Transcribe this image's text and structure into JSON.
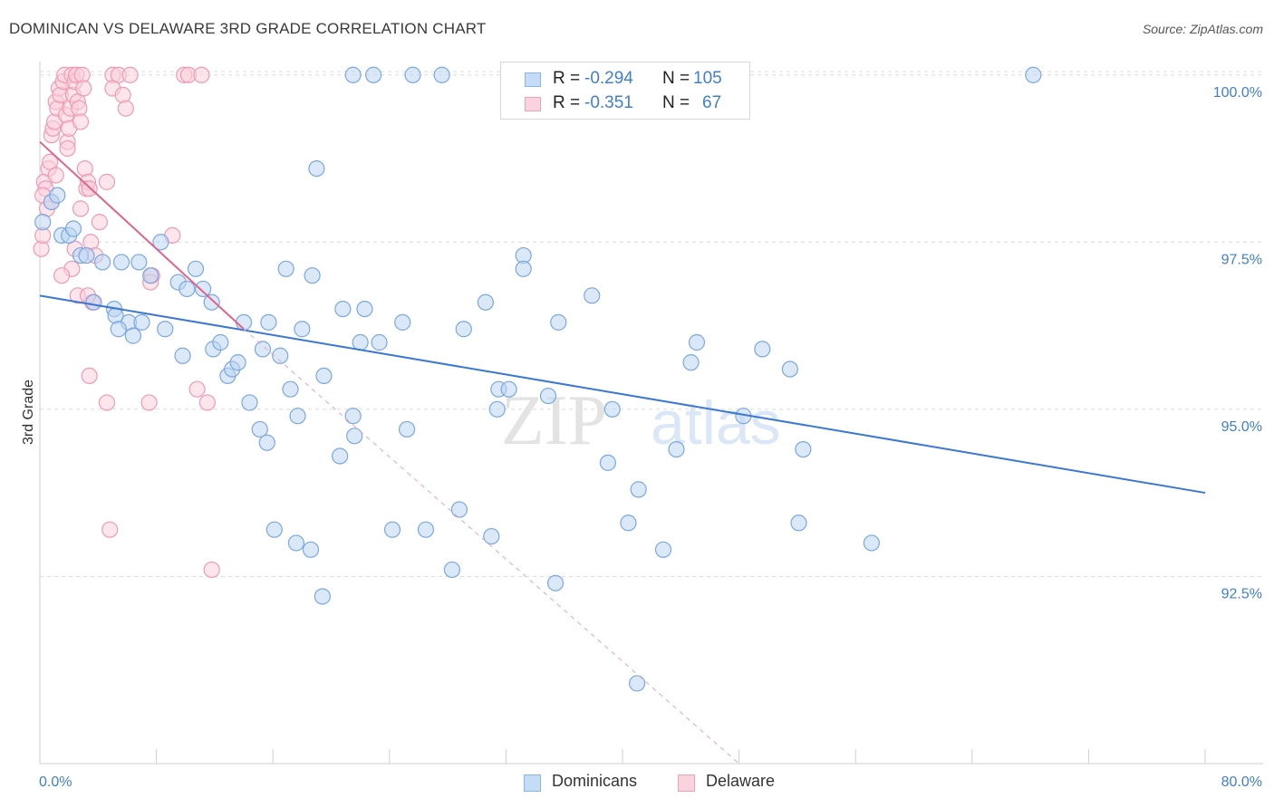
{
  "title": "DOMINICAN VS DELAWARE 3RD GRADE CORRELATION CHART",
  "source": "Source: ZipAtlas.com",
  "watermark": {
    "zip": "ZIP",
    "atlas": "atlas"
  },
  "legend": {
    "rows": [
      {
        "r_label": "R =",
        "r_value": "-0.294",
        "n_label": "N =",
        "n_value": "105",
        "color": "#8ab4e8",
        "fill": "#c5dcf6"
      },
      {
        "r_label": "R =",
        "r_value": "-0.351",
        "n_label": "N =",
        "n_value": "67",
        "color": "#f0a0b8",
        "fill": "#fbd3df"
      }
    ]
  },
  "bottom_legend": {
    "dominicans": "Dominicans",
    "delaware": "Delaware"
  },
  "colors": {
    "blue": "#3a78d4",
    "blue_fill": "#bcd5f3",
    "blue_stroke": "#7aa8e0",
    "pink": "#e0648a",
    "pink_fill": "#fbd0dd",
    "pink_stroke": "#ef9ab5",
    "tick": "#3f7fd0"
  },
  "chart_data": {
    "type": "scatter",
    "title": "DOMINICAN VS DELAWARE 3RD GRADE CORRELATION CHART",
    "xlabel": "",
    "ylabel": "3rd Grade",
    "xlim": [
      0,
      80
    ],
    "ylim": [
      89.7,
      100.2
    ],
    "x_tick_labels": [
      "0.0%",
      "80.0%"
    ],
    "y_ticks": [
      100.0,
      97.5,
      95.0,
      92.5
    ],
    "y_tick_labels": [
      "100.0%",
      "97.5%",
      "95.0%",
      "92.5%"
    ],
    "series": [
      {
        "name": "Dominicans",
        "trend": {
          "x": [
            0,
            80
          ],
          "y": [
            96.7,
            93.75
          ]
        },
        "points": [
          [
            0.2,
            97.8
          ],
          [
            0.8,
            98.1
          ],
          [
            1.2,
            98.2
          ],
          [
            1.5,
            97.6
          ],
          [
            2.0,
            97.6
          ],
          [
            2.8,
            97.3
          ],
          [
            2.3,
            97.7
          ],
          [
            3.2,
            97.3
          ],
          [
            4.3,
            97.2
          ],
          [
            5.6,
            97.2
          ],
          [
            6.8,
            97.2
          ],
          [
            7.6,
            97.0
          ],
          [
            8.3,
            97.5
          ],
          [
            9.5,
            96.9
          ],
          [
            10.7,
            97.1
          ],
          [
            11.2,
            96.8
          ],
          [
            10.1,
            96.8
          ],
          [
            3.7,
            96.6
          ],
          [
            5.1,
            96.5
          ],
          [
            6.1,
            96.3
          ],
          [
            5.2,
            96.4
          ],
          [
            5.4,
            96.2
          ],
          [
            6.4,
            96.1
          ],
          [
            7.0,
            96.3
          ],
          [
            8.6,
            96.2
          ],
          [
            9.8,
            95.8
          ],
          [
            11.8,
            96.6
          ],
          [
            11.9,
            95.9
          ],
          [
            12.4,
            96.0
          ],
          [
            12.9,
            95.5
          ],
          [
            13.2,
            95.6
          ],
          [
            13.6,
            95.7
          ],
          [
            14.0,
            96.3
          ],
          [
            14.4,
            95.1
          ],
          [
            15.3,
            95.9
          ],
          [
            15.1,
            94.7
          ],
          [
            15.6,
            94.5
          ],
          [
            15.7,
            96.3
          ],
          [
            16.5,
            95.8
          ],
          [
            17.2,
            95.3
          ],
          [
            17.7,
            94.9
          ],
          [
            18.0,
            96.2
          ],
          [
            16.1,
            93.2
          ],
          [
            17.6,
            93.0
          ],
          [
            18.6,
            92.9
          ],
          [
            19.4,
            92.2
          ],
          [
            16.9,
            97.1
          ],
          [
            18.7,
            97.0
          ],
          [
            19.0,
            98.6
          ],
          [
            19.5,
            95.5
          ],
          [
            20.6,
            94.3
          ],
          [
            21.6,
            94.6
          ],
          [
            21.5,
            94.9
          ],
          [
            22.0,
            96.0
          ],
          [
            22.3,
            96.5
          ],
          [
            20.8,
            96.5
          ],
          [
            23.3,
            96.0
          ],
          [
            24.2,
            93.2
          ],
          [
            24.9,
            96.3
          ],
          [
            25.2,
            94.7
          ],
          [
            26.5,
            93.2
          ],
          [
            28.3,
            92.6
          ],
          [
            28.8,
            93.5
          ],
          [
            29.1,
            96.2
          ],
          [
            30.6,
            96.6
          ],
          [
            31.0,
            93.1
          ],
          [
            31.4,
            95.0
          ],
          [
            31.5,
            95.3
          ],
          [
            32.2,
            95.3
          ],
          [
            33.2,
            97.3
          ],
          [
            33.2,
            97.1
          ],
          [
            34.9,
            95.2
          ],
          [
            35.4,
            92.4
          ],
          [
            35.6,
            96.3
          ],
          [
            37.9,
            96.7
          ],
          [
            39.0,
            94.2
          ],
          [
            39.3,
            95.0
          ],
          [
            40.4,
            93.3
          ],
          [
            41.1,
            93.8
          ],
          [
            41.0,
            90.9
          ],
          [
            42.8,
            92.9
          ],
          [
            43.7,
            94.4
          ],
          [
            44.7,
            95.7
          ],
          [
            45.1,
            96.0
          ],
          [
            48.3,
            94.9
          ],
          [
            49.6,
            95.9
          ],
          [
            51.5,
            95.6
          ],
          [
            52.1,
            93.3
          ],
          [
            52.4,
            94.4
          ],
          [
            57.1,
            93.0
          ],
          [
            21.5,
            100.0
          ],
          [
            22.9,
            100.0
          ],
          [
            25.6,
            100.0
          ],
          [
            27.6,
            100.0
          ],
          [
            68.2,
            100.0
          ]
        ]
      },
      {
        "name": "Delaware",
        "trend": {
          "x": [
            0,
            14
          ],
          "y": [
            99.0,
            96.2
          ]
        },
        "trend_dashed": {
          "x": [
            14,
            48
          ],
          "y": [
            96.2,
            89.7
          ]
        },
        "points": [
          [
            0.1,
            97.4
          ],
          [
            0.2,
            97.6
          ],
          [
            0.3,
            98.4
          ],
          [
            0.4,
            98.3
          ],
          [
            0.5,
            98.0
          ],
          [
            0.6,
            98.6
          ],
          [
            0.7,
            98.7
          ],
          [
            0.8,
            99.1
          ],
          [
            0.9,
            99.2
          ],
          [
            1.0,
            99.3
          ],
          [
            1.1,
            99.6
          ],
          [
            1.2,
            99.5
          ],
          [
            1.3,
            99.8
          ],
          [
            1.4,
            99.7
          ],
          [
            1.6,
            99.9
          ],
          [
            1.7,
            100.0
          ],
          [
            1.8,
            99.4
          ],
          [
            1.9,
            99.0
          ],
          [
            2.0,
            99.2
          ],
          [
            2.1,
            99.5
          ],
          [
            2.2,
            100.0
          ],
          [
            2.3,
            99.7
          ],
          [
            2.4,
            99.9
          ],
          [
            2.5,
            100.0
          ],
          [
            2.6,
            99.6
          ],
          [
            2.7,
            99.5
          ],
          [
            2.8,
            99.3
          ],
          [
            2.9,
            100.0
          ],
          [
            3.0,
            99.8
          ],
          [
            3.1,
            98.6
          ],
          [
            3.2,
            98.3
          ],
          [
            3.3,
            98.4
          ],
          [
            3.4,
            98.3
          ],
          [
            3.5,
            97.5
          ],
          [
            3.6,
            96.6
          ],
          [
            0.2,
            98.2
          ],
          [
            0.8,
            98.1
          ],
          [
            1.1,
            98.5
          ],
          [
            1.9,
            98.9
          ],
          [
            2.2,
            97.1
          ],
          [
            1.5,
            97.0
          ],
          [
            2.4,
            97.4
          ],
          [
            2.6,
            96.7
          ],
          [
            2.8,
            98.0
          ],
          [
            3.3,
            96.7
          ],
          [
            3.4,
            95.5
          ],
          [
            3.8,
            97.3
          ],
          [
            4.1,
            97.8
          ],
          [
            4.6,
            98.4
          ],
          [
            5.0,
            100.0
          ],
          [
            5.0,
            99.8
          ],
          [
            5.4,
            100.0
          ],
          [
            5.7,
            99.7
          ],
          [
            5.9,
            99.5
          ],
          [
            6.2,
            100.0
          ],
          [
            7.5,
            95.1
          ],
          [
            7.7,
            97.0
          ],
          [
            9.1,
            97.6
          ],
          [
            9.9,
            100.0
          ],
          [
            10.2,
            100.0
          ],
          [
            11.1,
            100.0
          ],
          [
            11.5,
            95.1
          ],
          [
            10.8,
            95.3
          ],
          [
            11.8,
            92.6
          ],
          [
            4.6,
            95.1
          ],
          [
            4.8,
            93.2
          ],
          [
            7.6,
            96.9
          ]
        ]
      }
    ]
  }
}
